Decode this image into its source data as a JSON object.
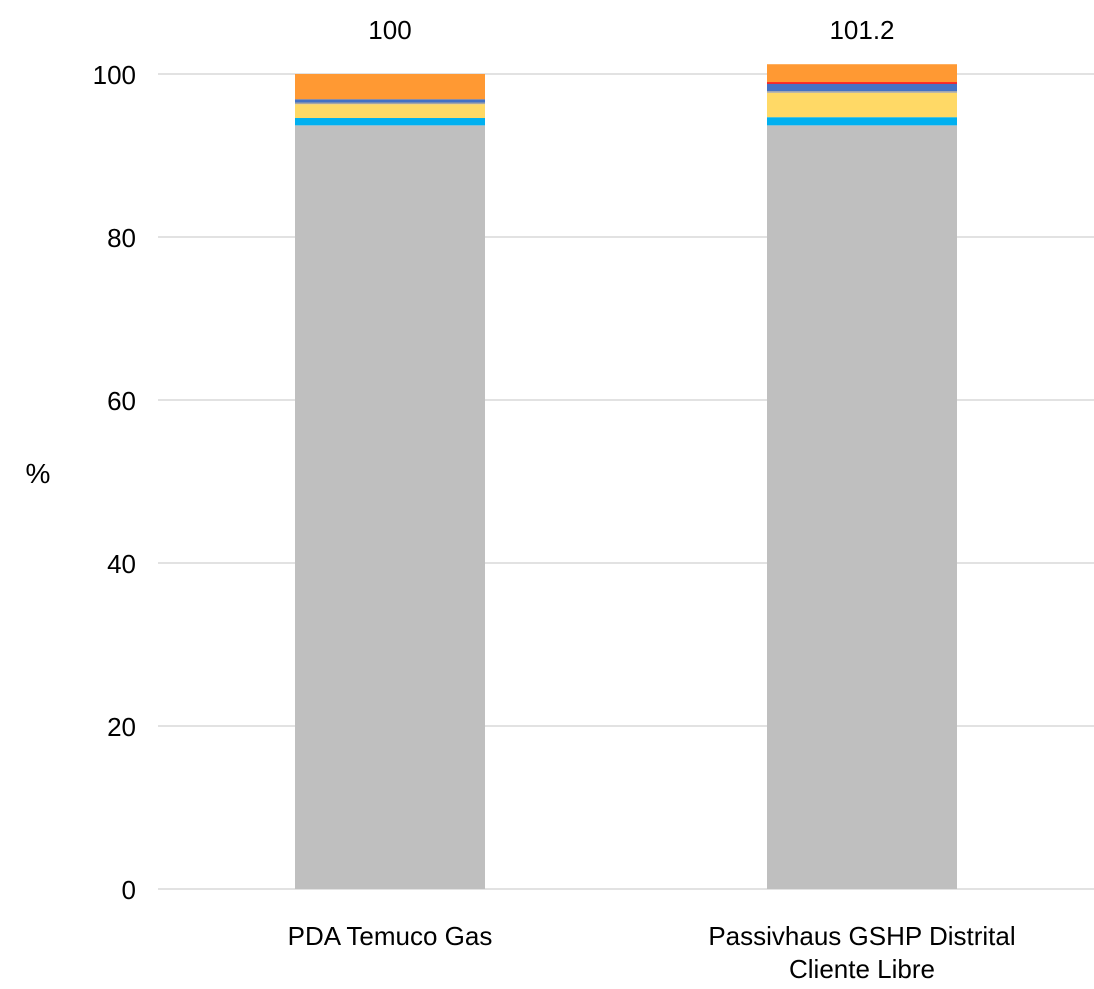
{
  "chart_data": {
    "type": "bar",
    "stacked": true,
    "categories": [
      "PDA Temuco Gas",
      "Passivhaus GSHP Distrital Cliente Libre"
    ],
    "category_lines": [
      [
        "PDA Temuco Gas"
      ],
      [
        "Passivhaus GSHP Distrital",
        "Cliente Libre"
      ]
    ],
    "series": [
      {
        "color": "#bfbfbf",
        "values": [
          93.7,
          93.7
        ]
      },
      {
        "color": "#00b0f0",
        "values": [
          0.9,
          1.0
        ]
      },
      {
        "color": "#ffd966",
        "values": [
          1.7,
          3.0
        ]
      },
      {
        "color": "#a5a5a5",
        "values": [
          0.2,
          0.2
        ]
      },
      {
        "color": "#4472c4",
        "values": [
          0.4,
          0.9
        ]
      },
      {
        "color": "#ff0000",
        "values": [
          0.0,
          0.2
        ]
      },
      {
        "color": "#ff9933",
        "values": [
          3.1,
          2.2
        ]
      }
    ],
    "totals": [
      "100",
      "101.2"
    ],
    "ylabel": "%",
    "ylim": [
      0,
      100
    ],
    "yticks": [
      "0",
      "20",
      "40",
      "60",
      "80",
      "100"
    ],
    "grid": true,
    "gridline_color": "#d9d9d9"
  }
}
